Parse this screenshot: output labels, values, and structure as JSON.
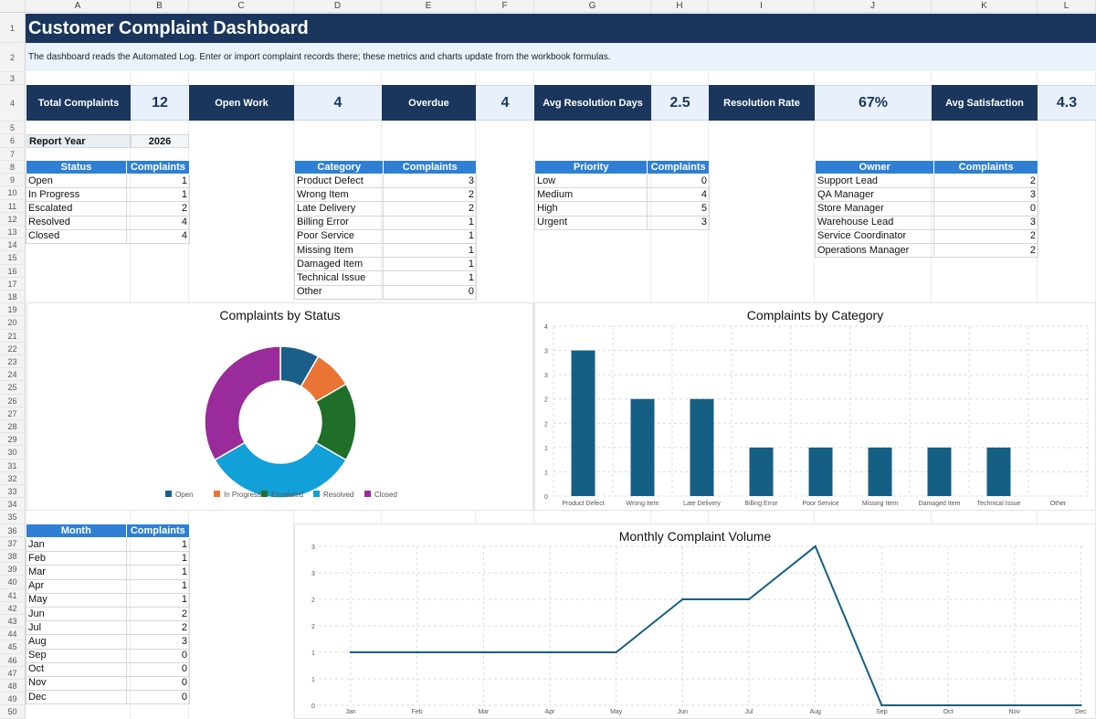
{
  "sheet": {
    "columns": [
      "A",
      "B",
      "C",
      "D",
      "E",
      "F",
      "G",
      "H",
      "I",
      "J",
      "K",
      "L"
    ],
    "rows": [
      "1",
      "2",
      "3",
      "4",
      "5",
      "6",
      "7",
      "8",
      "9",
      "10",
      "11",
      "12",
      "13",
      "14",
      "15",
      "16",
      "17",
      "18",
      "19",
      "20",
      "21",
      "22",
      "23",
      "24",
      "25",
      "26",
      "27",
      "28",
      "29",
      "30",
      "31",
      "32",
      "33",
      "34",
      "35",
      "36",
      "37",
      "38",
      "39",
      "40",
      "41",
      "42",
      "43",
      "44",
      "45",
      "46",
      "47",
      "48",
      "49",
      "50"
    ]
  },
  "header": {
    "title": "Customer Complaint Dashboard",
    "note": "The dashboard reads the Automated Log. Enter or import complaint records there; these metrics and charts update from the workbook formulas."
  },
  "kpis": [
    {
      "label": "Total Complaints",
      "value": "12"
    },
    {
      "label": "Open Work",
      "value": "4"
    },
    {
      "label": "Overdue",
      "value": "4"
    },
    {
      "label": "Avg Resolution Days",
      "value": "2.5"
    },
    {
      "label": "Resolution Rate",
      "value": "67%"
    },
    {
      "label": "Avg Satisfaction",
      "value": "4.3"
    }
  ],
  "report_year": {
    "label": "Report Year",
    "value": "2026"
  },
  "status_table": {
    "headers": [
      "Status",
      "Complaints"
    ],
    "rows": [
      [
        "Open",
        "1"
      ],
      [
        "In Progress",
        "1"
      ],
      [
        "Escalated",
        "2"
      ],
      [
        "Resolved",
        "4"
      ],
      [
        "Closed",
        "4"
      ]
    ]
  },
  "category_table": {
    "headers": [
      "Category",
      "Complaints"
    ],
    "rows": [
      [
        "Product Defect",
        "3"
      ],
      [
        "Wrong Item",
        "2"
      ],
      [
        "Late Delivery",
        "2"
      ],
      [
        "Billing Error",
        "1"
      ],
      [
        "Poor Service",
        "1"
      ],
      [
        "Missing Item",
        "1"
      ],
      [
        "Damaged Item",
        "1"
      ],
      [
        "Technical Issue",
        "1"
      ],
      [
        "Other",
        "0"
      ]
    ]
  },
  "priority_table": {
    "headers": [
      "Priority",
      "Complaints"
    ],
    "rows": [
      [
        "Low",
        "0"
      ],
      [
        "Medium",
        "4"
      ],
      [
        "High",
        "5"
      ],
      [
        "Urgent",
        "3"
      ]
    ]
  },
  "owner_table": {
    "headers": [
      "Owner",
      "Complaints"
    ],
    "rows": [
      [
        "Support Lead",
        "2"
      ],
      [
        "QA Manager",
        "3"
      ],
      [
        "Store Manager",
        "0"
      ],
      [
        "Warehouse Lead",
        "3"
      ],
      [
        "Service Coordinator",
        "2"
      ],
      [
        "Operations Manager",
        "2"
      ]
    ]
  },
  "month_table": {
    "headers": [
      "Month",
      "Complaints"
    ],
    "rows": [
      [
        "Jan",
        "1"
      ],
      [
        "Feb",
        "1"
      ],
      [
        "Mar",
        "1"
      ],
      [
        "Apr",
        "1"
      ],
      [
        "May",
        "1"
      ],
      [
        "Jun",
        "2"
      ],
      [
        "Jul",
        "2"
      ],
      [
        "Aug",
        "3"
      ],
      [
        "Sep",
        "0"
      ],
      [
        "Oct",
        "0"
      ],
      [
        "Nov",
        "0"
      ],
      [
        "Dec",
        "0"
      ]
    ]
  },
  "chart_data": [
    {
      "type": "pie",
      "title": "Complaints by Status",
      "categories": [
        "Open",
        "In Progress",
        "Escalated",
        "Resolved",
        "Closed"
      ],
      "values": [
        1,
        1,
        2,
        4,
        4
      ],
      "colors": [
        "#1a5f8a",
        "#ea7434",
        "#1f6f28",
        "#12a0d8",
        "#9a2b9a"
      ],
      "legend": "bottom"
    },
    {
      "type": "bar",
      "title": "Complaints by Category",
      "categories": [
        "Product Defect",
        "Wrong Item",
        "Late Delivery",
        "Billing Error",
        "Poor Service",
        "Missing Item",
        "Damaged Item",
        "Technical Issue",
        "Other"
      ],
      "values": [
        3,
        2,
        2,
        1,
        1,
        1,
        1,
        1,
        0
      ],
      "yticks": [
        "0",
        "1",
        "1",
        "2",
        "2",
        "3",
        "3",
        "4"
      ],
      "ylim": [
        0,
        3.5
      ],
      "color": "#155f85",
      "grid": true
    },
    {
      "type": "line",
      "title": "Monthly Complaint Volume",
      "categories": [
        "Jan",
        "Feb",
        "Mar",
        "Apr",
        "May",
        "Jun",
        "Jul",
        "Aug",
        "Sep",
        "Oct",
        "Nov",
        "Dec"
      ],
      "values": [
        1,
        1,
        1,
        1,
        1,
        2,
        2,
        3,
        0,
        0,
        0,
        0
      ],
      "yticks": [
        "0",
        "1",
        "1",
        "2",
        "2",
        "3",
        "3"
      ],
      "ylim": [
        0,
        3
      ],
      "color": "#155f85",
      "grid": true
    }
  ]
}
